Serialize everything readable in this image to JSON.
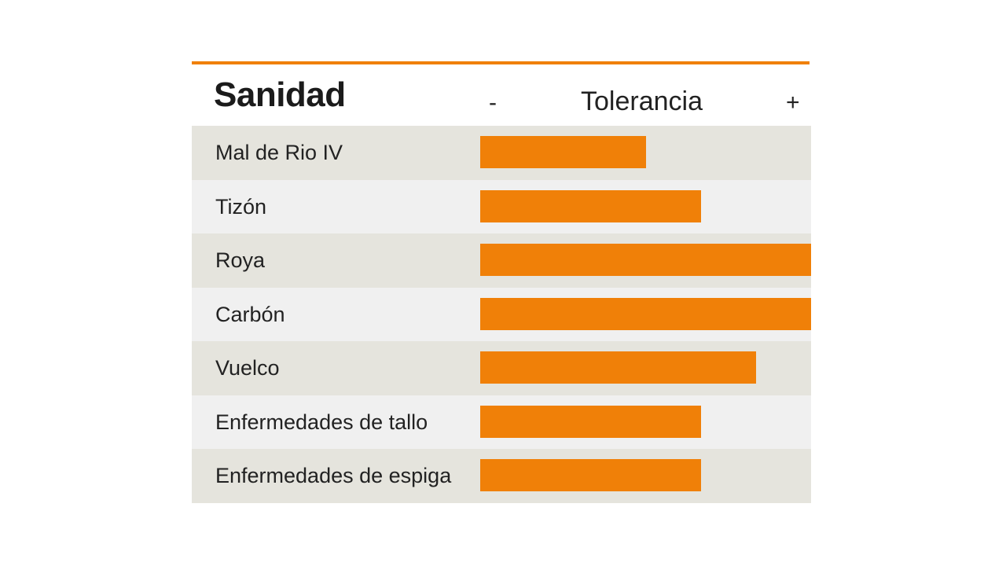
{
  "colors": {
    "accent": "#f08008",
    "row_dark": "#e5e4dd",
    "row_light": "#f0f0f0"
  },
  "chart_data": {
    "type": "bar",
    "orientation": "horizontal",
    "title": "Sanidad",
    "xlabel": "Tolerancia",
    "scale_min_label": "-",
    "scale_max_label": "+",
    "categories": [
      "Mal de Rio IV",
      "Tizón",
      "Roya",
      "Carbón",
      "Vuelco",
      "Enfermedades de tallo",
      "Enfermedades de espiga"
    ],
    "values": [
      3,
      4,
      6,
      6,
      5,
      4,
      4
    ],
    "xlim": [
      0,
      6
    ],
    "grid": false,
    "legend": "none"
  }
}
